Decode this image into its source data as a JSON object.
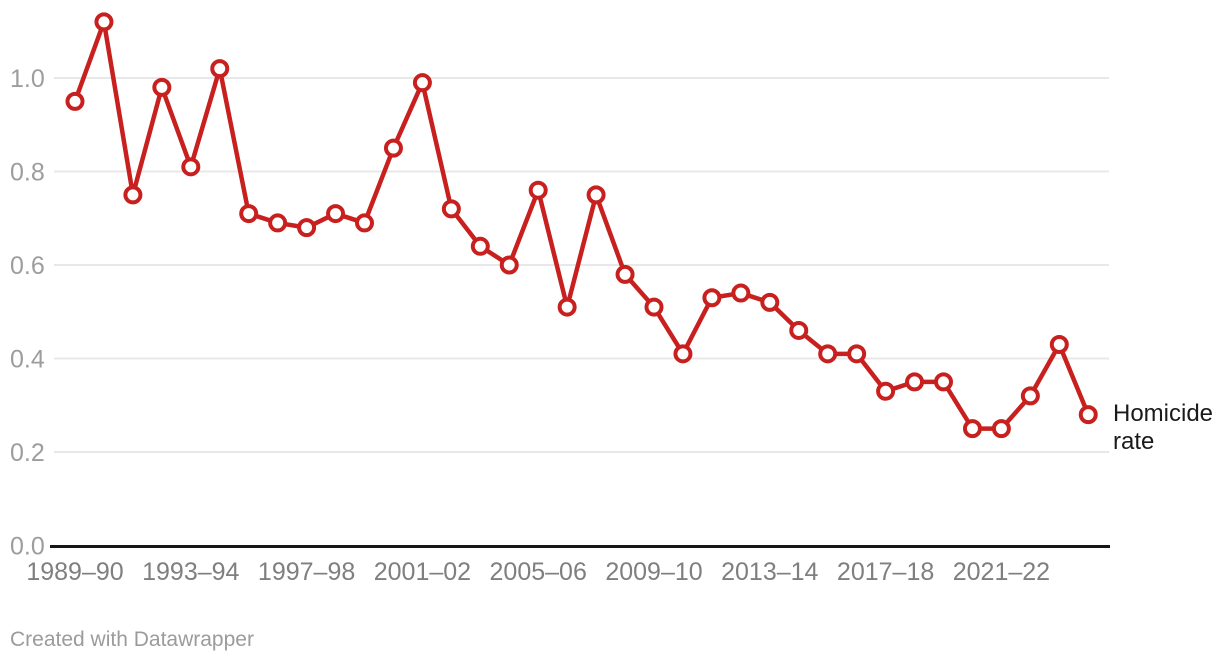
{
  "chart_data": {
    "type": "line",
    "title": "",
    "xlabel": "",
    "ylabel": "",
    "categories": [
      "1989–90",
      "1990–91",
      "1991–92",
      "1992–93",
      "1993–94",
      "1994–95",
      "1995–96",
      "1996–97",
      "1997–98",
      "1998–99",
      "1999–00",
      "2000–01",
      "2001–02",
      "2002–03",
      "2003–04",
      "2004–05",
      "2005–06",
      "2006–07",
      "2007–08",
      "2008–09",
      "2009–10",
      "2010–11",
      "2011–12",
      "2012–13",
      "2013–14",
      "2014–15",
      "2015–16",
      "2016–17",
      "2017–18",
      "2018–19",
      "2019–20",
      "2020–21",
      "2021–22",
      "2022–23",
      "2023–24",
      "2024–25"
    ],
    "series": [
      {
        "name": "Homicide rate",
        "values": [
          0.95,
          1.12,
          0.75,
          0.98,
          0.81,
          1.02,
          0.71,
          0.69,
          0.68,
          0.71,
          0.69,
          0.85,
          0.99,
          0.72,
          0.64,
          0.6,
          0.76,
          0.51,
          0.75,
          0.58,
          0.51,
          0.41,
          0.53,
          0.54,
          0.52,
          0.46,
          0.41,
          0.41,
          0.33,
          0.35,
          0.35,
          0.25,
          0.25,
          0.32,
          0.43,
          0.28
        ]
      }
    ],
    "x_tick_labels": [
      "1989–90",
      "1993–94",
      "1997–98",
      "2001–02",
      "2005–06",
      "2009–10",
      "2013–14",
      "2017–18",
      "2021–22"
    ],
    "x_tick_every": 4,
    "y_ticks": [
      0.0,
      0.2,
      0.4,
      0.6,
      0.8,
      1.0
    ],
    "ylim": [
      0,
      1.16
    ],
    "grid": "horizontal",
    "legend_position": "end-of-line",
    "colors": {
      "line": "#c7201e",
      "marker_fill": "#ffffff",
      "grid_line": "#e8e8e8",
      "zero_axis": "#161616",
      "y_tick_text": "#9d9d9d",
      "x_tick_text": "#7f7f7f",
      "annotation_text": "#1a1a1a",
      "footer_text": "#9b9b9b"
    }
  },
  "annotation": {
    "line1": "Homicide",
    "line2": "rate"
  },
  "footer": {
    "credit": "Created with Datawrapper"
  }
}
